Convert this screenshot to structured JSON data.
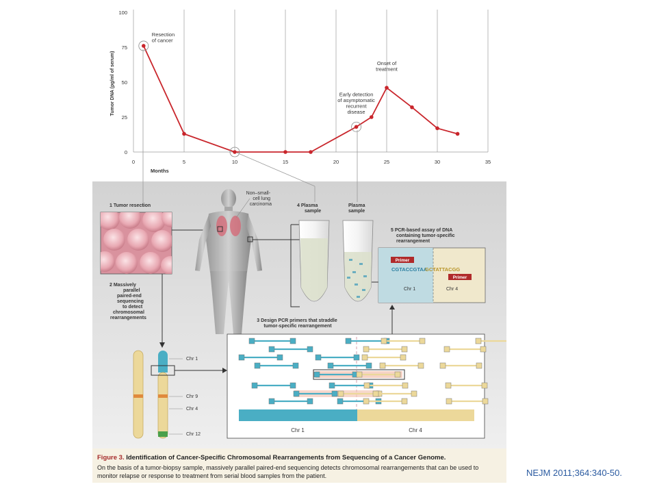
{
  "citation": "NEJM 2011;364:340-50.",
  "chart_data": {
    "type": "line",
    "xlabel": "Months",
    "ylabel": "Tumor DNA (pg/ml of serum)",
    "xlim": [
      0,
      35
    ],
    "ylim": [
      0,
      100
    ],
    "xticks": [
      "0",
      "5",
      "10",
      "15",
      "20",
      "25",
      "30",
      "35"
    ],
    "yticks": [
      "0",
      "25",
      "50",
      "75",
      "100"
    ],
    "grid": "vertical lines at each x tick",
    "line_color": "#c9262c",
    "points": [
      {
        "x": 1,
        "y": 76
      },
      {
        "x": 5,
        "y": 13
      },
      {
        "x": 10,
        "y": 0
      },
      {
        "x": 15,
        "y": 0
      },
      {
        "x": 17.5,
        "y": 0
      },
      {
        "x": 22,
        "y": 18
      },
      {
        "x": 23.5,
        "y": 25
      },
      {
        "x": 25,
        "y": 46
      },
      {
        "x": 27.5,
        "y": 32
      },
      {
        "x": 30,
        "y": 17
      },
      {
        "x": 32,
        "y": 13
      }
    ],
    "annotations": [
      {
        "text": [
          "Resection",
          "of cancer"
        ],
        "x": 1,
        "y": 76
      },
      {
        "text": [
          "Early detection",
          "of asymptomatic",
          "recurrent",
          "disease"
        ],
        "x": 22,
        "y": 18
      },
      {
        "text": [
          "Onset of",
          "treatment"
        ],
        "x": 25,
        "y": 46
      }
    ]
  },
  "diagram": {
    "step1": "1  Tumor resection",
    "step2": [
      "2  Massively",
      "parallel",
      "paired-end",
      "sequencing",
      "to detect",
      "chromosomal",
      "rearrangements"
    ],
    "step3": [
      "3  Design PCR primers that straddle",
      "tumor-specific rearrangement"
    ],
    "step4": [
      "4  Plasma",
      "sample"
    ],
    "plasma2": [
      "Plasma",
      "sample"
    ],
    "step5": [
      "5  PCR-based assay of DNA",
      "containing tumor-specific",
      "rearrangement"
    ],
    "nsclc": [
      "Non–small-",
      "cell lung",
      "carcinoma"
    ],
    "primer": "Primer",
    "seq_a": "CGTACCGTAA",
    "seq_b": "GCTATTACGG",
    "chr1": "Chr 1",
    "chr4": "Chr 4",
    "chr9": "Chr 9",
    "chr12": "Chr 12",
    "colors": {
      "teal": "#4aaec4",
      "tan": "#ecd89a",
      "red": "#c9262c",
      "panel": "#e4e4e4"
    }
  },
  "caption": {
    "fig_label": "Figure 3.",
    "title": "Identification of Cancer-Specific Chromosomal Rearrangements from Sequencing of a Cancer Genome.",
    "body": "On the basis of a tumor-biopsy sample, massively parallel paired-end sequencing detects chromosomal rearrangements that can be used to monitor relapse or response to treatment from serial blood samples from the patient."
  }
}
